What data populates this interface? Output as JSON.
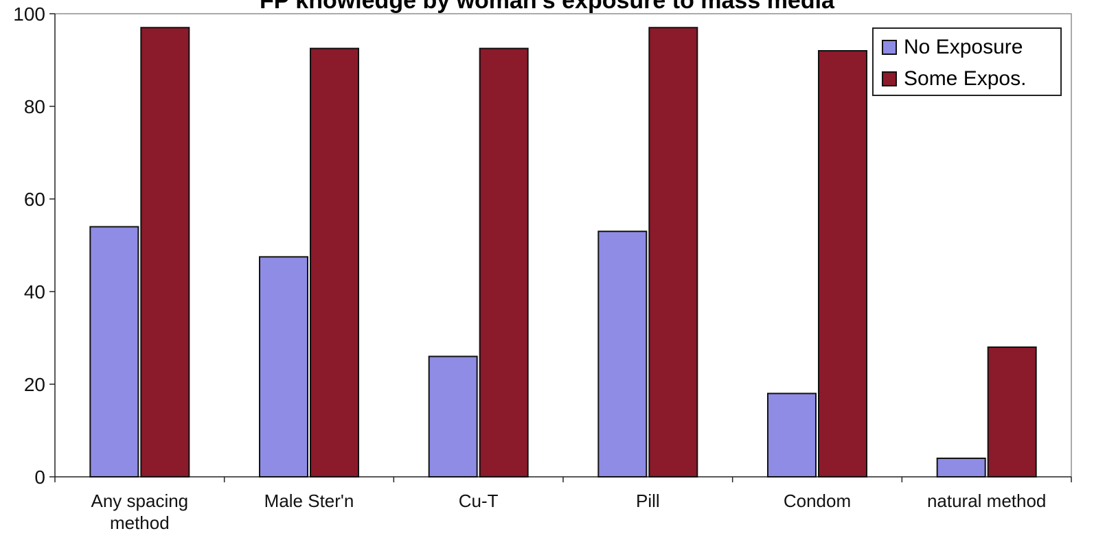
{
  "chart_data": {
    "type": "bar",
    "title": "FP knowledge by woman's exposure to mass media",
    "categories": [
      "Any spacing method",
      "Male Ster'n",
      "Cu-T",
      "Pill",
      "Condom",
      "natural method"
    ],
    "category_lines": [
      [
        "Any spacing",
        "method"
      ],
      [
        "Male Ster'n"
      ],
      [
        "Cu-T"
      ],
      [
        "Pill"
      ],
      [
        "Condom"
      ],
      [
        "natural method"
      ]
    ],
    "series": [
      {
        "name": "No Exposure",
        "color": "#8e8ce4",
        "values": [
          54,
          47.5,
          26,
          53,
          18,
          4
        ]
      },
      {
        "name": "Some Expos.",
        "color": "#8b1a2a",
        "values": [
          97,
          92.5,
          92.5,
          97,
          92,
          28
        ]
      }
    ],
    "xlabel": "",
    "ylabel": "",
    "ylim": [
      0,
      100
    ],
    "yticks": [
      0,
      20,
      40,
      60,
      80,
      100
    ],
    "grid": false,
    "legend_position": "top-right"
  }
}
